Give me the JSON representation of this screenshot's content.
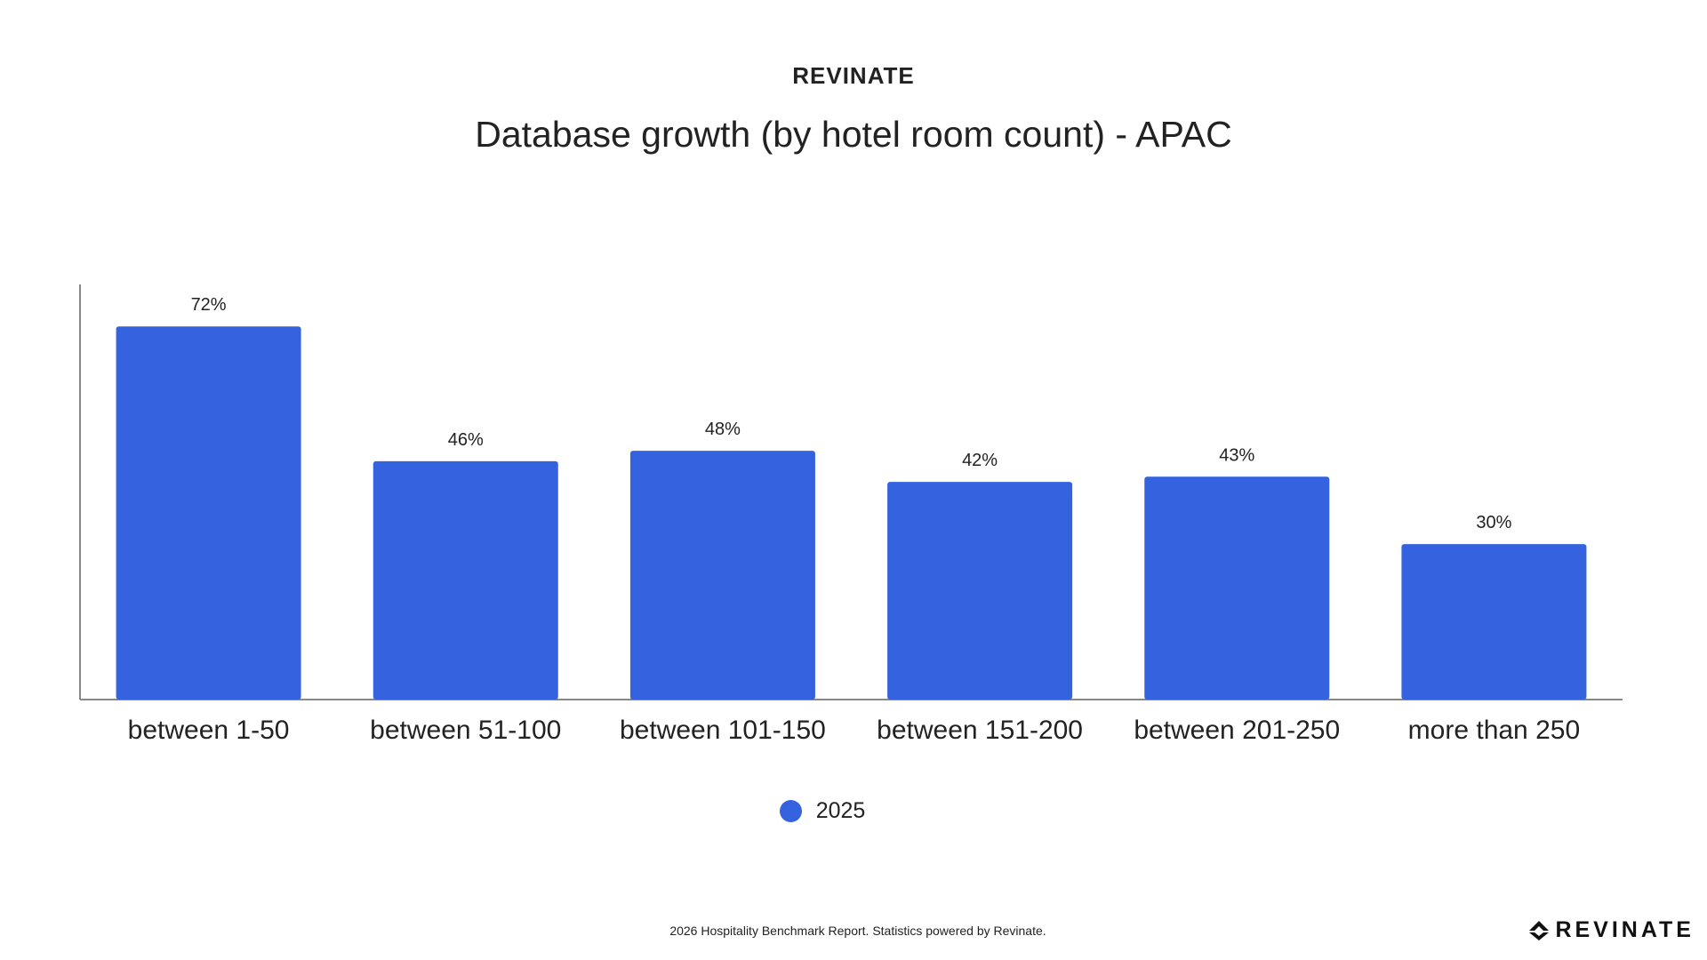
{
  "header": {
    "brand": "REVINATE"
  },
  "chart_data": {
    "type": "bar",
    "title": "Database growth (by hotel room count) - APAC",
    "categories": [
      "between 1-50",
      "between 51-100",
      "between 101-150",
      "between 151-200",
      "between 201-250",
      "more than 250"
    ],
    "series": [
      {
        "name": "2025",
        "values": [
          72,
          46,
          48,
          42,
          43,
          30
        ],
        "color": "#3563e0"
      }
    ],
    "data_labels": [
      "72%",
      "46%",
      "48%",
      "42%",
      "43%",
      "30%"
    ],
    "ylim": [
      0,
      80
    ],
    "xlabel": "",
    "ylabel": "",
    "grid": false,
    "legend_position": "bottom-center"
  },
  "footer": {
    "note": "2026 Hospitality Benchmark Report. Statistics powered by Revinate.",
    "logo_text": "REVINATE",
    "logo_icon": "revinate-logo-icon"
  },
  "colors": {
    "bar": "#3563e0",
    "axis": "#888888",
    "text": "#222222"
  }
}
